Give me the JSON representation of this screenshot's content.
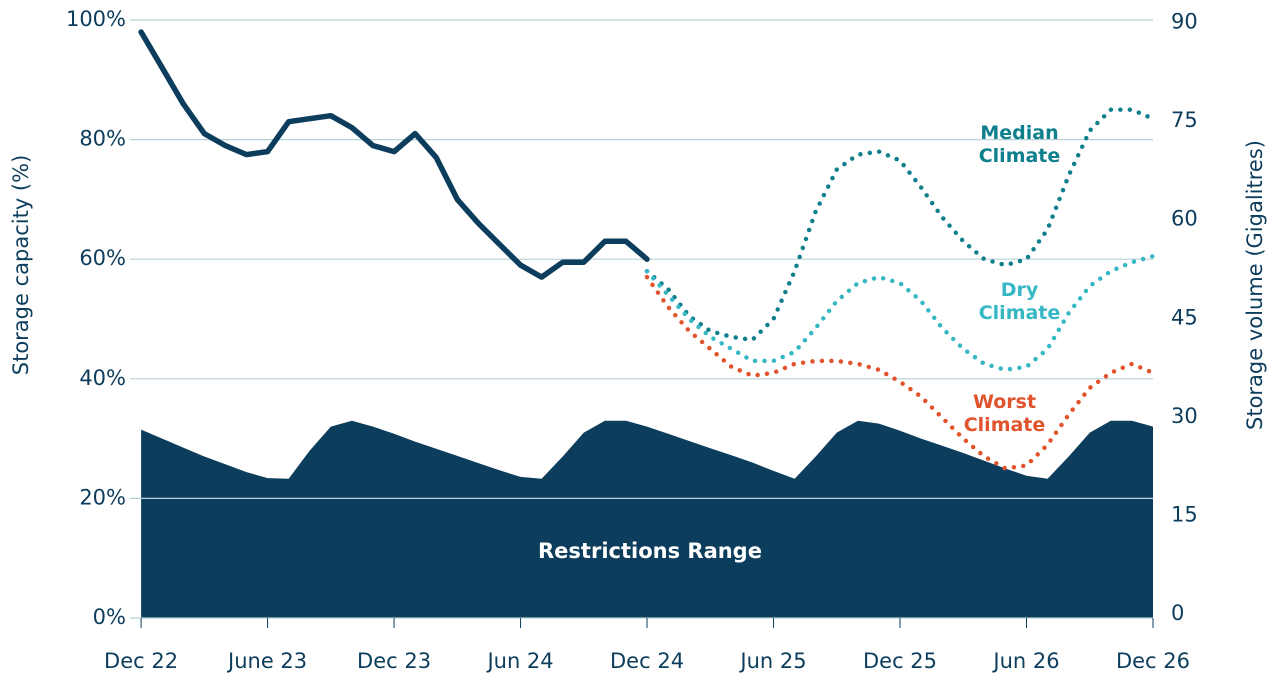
{
  "chart_data": {
    "type": "line",
    "x": [
      "2022-12",
      "2023-01",
      "2023-02",
      "2023-03",
      "2023-04",
      "2023-05",
      "2023-06",
      "2023-07",
      "2023-08",
      "2023-09",
      "2023-10",
      "2023-11",
      "2023-12",
      "2024-01",
      "2024-02",
      "2024-03",
      "2024-04",
      "2024-05",
      "2024-06",
      "2024-07",
      "2024-08",
      "2024-09",
      "2024-10",
      "2024-11",
      "2024-12",
      "2025-01",
      "2025-02",
      "2025-03",
      "2025-04",
      "2025-05",
      "2025-06",
      "2025-07",
      "2025-08",
      "2025-09",
      "2025-10",
      "2025-11",
      "2025-12",
      "2026-01",
      "2026-02",
      "2026-03",
      "2026-04",
      "2026-05",
      "2026-06",
      "2026-07",
      "2026-08",
      "2026-09",
      "2026-10",
      "2026-11",
      "2026-12"
    ],
    "xlim": [
      "2022-11",
      "2026-12"
    ],
    "xticks": [
      {
        "value": "2022-12",
        "label": "Dec 22"
      },
      {
        "value": "2023-06",
        "label": "June 23"
      },
      {
        "value": "2023-12",
        "label": "Dec 23"
      },
      {
        "value": "2024-06",
        "label": "Jun 24"
      },
      {
        "value": "2024-12",
        "label": "Dec 24"
      },
      {
        "value": "2025-06",
        "label": "Jun 25"
      },
      {
        "value": "2025-12",
        "label": "Dec 25"
      },
      {
        "value": "2026-06",
        "label": "Jun 26"
      },
      {
        "value": "2026-12",
        "label": "Dec 26"
      }
    ],
    "ylabel": "Storage capacity (%)",
    "y2label": "Storage volume (Gigalitres)",
    "ylim": [
      0,
      100
    ],
    "yticks": [
      {
        "value": 0,
        "label": "0%"
      },
      {
        "value": 20,
        "label": "20%"
      },
      {
        "value": 40,
        "label": "40%"
      },
      {
        "value": 60,
        "label": "60%"
      },
      {
        "value": 80,
        "label": "80%"
      },
      {
        "value": 100,
        "label": "100%"
      }
    ],
    "y2lim": [
      0,
      91
    ],
    "y2ticks": [
      0,
      15,
      30,
      45,
      60,
      75,
      90
    ],
    "grid": true,
    "series": [
      {
        "name": "Restrictions Range",
        "kind": "area",
        "color": "#0d3d5c",
        "values": [
          31.5,
          30,
          28.5,
          27,
          25.7,
          24.4,
          23.4,
          23.3,
          28,
          32,
          33,
          32,
          30.8,
          29.5,
          28.3,
          27.1,
          25.9,
          24.7,
          23.6,
          23.3,
          27,
          31,
          33,
          33,
          32,
          30.8,
          29.6,
          28.4,
          27.2,
          26,
          24.6,
          23.3,
          27,
          31,
          33,
          32.5,
          31.3,
          30,
          28.8,
          27.6,
          26.3,
          25,
          23.8,
          23.3,
          27,
          31,
          33,
          33,
          32
        ]
      },
      {
        "kind": "solid",
        "color": "#0d3d5c",
        "values": [
          98,
          92,
          86,
          81,
          79,
          77.5,
          78,
          83,
          83.5,
          84,
          82,
          79,
          78,
          81,
          77,
          70,
          66,
          62.5,
          59,
          57,
          59.5,
          59.5,
          63,
          63,
          60,
          null,
          null,
          null,
          null,
          null,
          null,
          null,
          null,
          null,
          null,
          null,
          null,
          null,
          null,
          null,
          null,
          null,
          null,
          null,
          null,
          null,
          null,
          null,
          null
        ]
      },
      {
        "name": "Median Climate",
        "kind": "dotted",
        "color": "#0e7f8c",
        "values": [
          null,
          null,
          null,
          null,
          null,
          null,
          null,
          null,
          null,
          null,
          null,
          null,
          null,
          null,
          null,
          null,
          null,
          null,
          null,
          null,
          null,
          null,
          null,
          null,
          58,
          55,
          50.5,
          48,
          47,
          46.5,
          50,
          58,
          68,
          75,
          77.5,
          78,
          76.5,
          72,
          67,
          63,
          60,
          59,
          60,
          65,
          74,
          81.5,
          85,
          85,
          83.5
        ]
      },
      {
        "name": "Dry Climate",
        "kind": "dotted",
        "color": "#36b7c4",
        "values": [
          null,
          null,
          null,
          null,
          null,
          null,
          null,
          null,
          null,
          null,
          null,
          null,
          null,
          null,
          null,
          null,
          null,
          null,
          null,
          null,
          null,
          null,
          null,
          null,
          58,
          54,
          50,
          47,
          45,
          43,
          43,
          44.5,
          48.5,
          53,
          56,
          57,
          56,
          53,
          48.5,
          45,
          42.5,
          41.5,
          42,
          45,
          51,
          55.5,
          58,
          59.5,
          60.5
        ]
      },
      {
        "name": "Worst Climate",
        "kind": "dotted",
        "color": "#e0532c",
        "values": [
          null,
          null,
          null,
          null,
          null,
          null,
          null,
          null,
          null,
          null,
          null,
          null,
          null,
          null,
          null,
          null,
          null,
          null,
          null,
          null,
          null,
          null,
          null,
          null,
          57,
          52,
          48,
          45,
          42,
          40.5,
          41,
          42.5,
          43,
          43,
          42.5,
          41.5,
          39.5,
          37,
          33.5,
          30,
          27,
          25,
          25.5,
          29,
          34,
          38.5,
          41,
          42.5,
          41
        ]
      }
    ]
  }
}
